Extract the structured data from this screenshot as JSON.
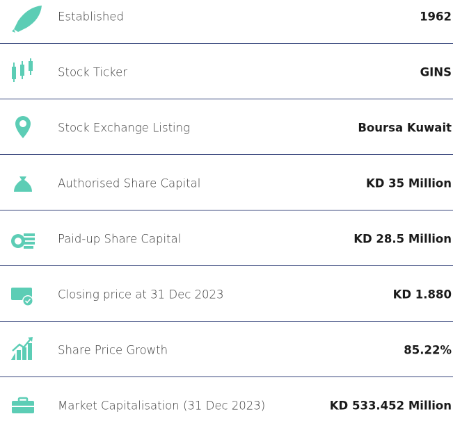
{
  "rows": [
    {
      "label": "Established",
      "value": "1962"
    },
    {
      "label": "Stock Ticker",
      "value": "GINS"
    },
    {
      "label": "Stock Exchange Listing",
      "value": "Boursa Kuwait"
    },
    {
      "label": "Authorised Share Capital",
      "value": "KD 35 Million"
    },
    {
      "label": "Paid-up Share Capital",
      "value": "KD 28.5 Million"
    },
    {
      "label": "Closing price at 31 Dec 2023",
      "value": "KD 1.880"
    },
    {
      "label": "Share Price Growth",
      "value": "85.22%"
    },
    {
      "label": "Market Capitalisation (31 Dec 2023)",
      "value": "KD 533.452 Million"
    }
  ]
}
